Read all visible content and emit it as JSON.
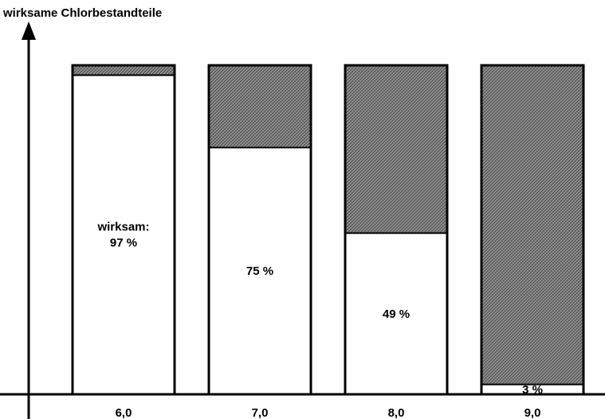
{
  "chart_data": {
    "type": "bar",
    "stacked": true,
    "title": "wirksame Chlorbestandteile",
    "xlabel": "",
    "ylabel": "wirksame Chlorbestandteile",
    "categories": [
      "6,0",
      "7,0",
      "8,0",
      "9,0"
    ],
    "series": [
      {
        "values": [
          97,
          75,
          49,
          3
        ],
        "color": "#ffffff"
      },
      {
        "values": [
          3,
          25,
          51,
          97
        ],
        "color": "#888888",
        "pattern": "crosshatch"
      }
    ],
    "data_labels": [
      [
        "wirksam:",
        "97 %"
      ],
      [
        "75 %"
      ],
      [
        "49 %"
      ],
      [
        "3 %"
      ]
    ],
    "ylim": [
      0,
      100
    ],
    "grid": false,
    "legend": "none"
  }
}
